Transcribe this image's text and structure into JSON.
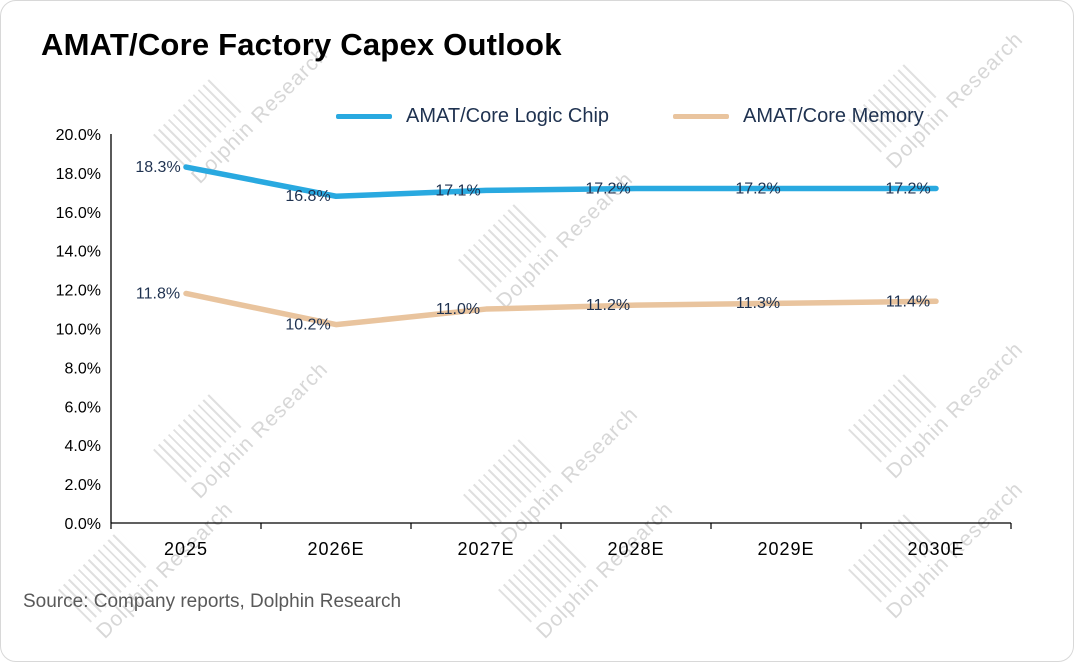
{
  "title": "AMAT/Core Factory Capex Outlook",
  "source": "Source: Company reports, Dolphin Research",
  "watermark": "Dolphin Research",
  "chart_data": {
    "type": "line",
    "title": "AMAT/Core Factory Capex Outlook",
    "categories": [
      "2025",
      "2026E",
      "2027E",
      "2028E",
      "2029E",
      "2030E"
    ],
    "series": [
      {
        "name": "AMAT/Core Logic Chip",
        "color": "#29a9e0",
        "values": [
          18.3,
          16.8,
          17.1,
          17.2,
          17.2,
          17.2
        ],
        "labels": [
          "18.3%",
          "16.8%",
          "17.1%",
          "17.2%",
          "17.2%",
          "17.2%"
        ]
      },
      {
        "name": "AMAT/Core Memory",
        "color": "#e9c49e",
        "values": [
          11.8,
          10.2,
          11.0,
          11.2,
          11.3,
          11.4
        ],
        "labels": [
          "11.8%",
          "10.2%",
          "11.0%",
          "11.2%",
          "11.3%",
          "11.4%"
        ]
      }
    ],
    "ylim": [
      0,
      20
    ],
    "ytick_step": 2,
    "ytick_labels": [
      "0.0%",
      "2.0%",
      "4.0%",
      "6.0%",
      "8.0%",
      "10.0%",
      "12.0%",
      "14.0%",
      "16.0%",
      "18.0%",
      "20.0%"
    ],
    "xlabel": "",
    "ylabel": "",
    "grid": false,
    "legend_position": "top",
    "label_format": "percent1",
    "text_color": "#1f3250",
    "axis_color": "#000000",
    "watermark_color": "#c7c7c7"
  }
}
